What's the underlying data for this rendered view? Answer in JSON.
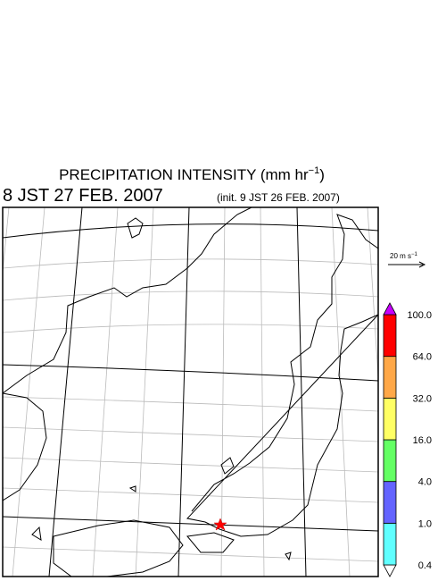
{
  "title": {
    "text": "PRECIPITATION INTENSITY (mm hr",
    "superscript": "−1",
    "close": ")"
  },
  "valid_time": "8 JST 27 FEB. 2007",
  "init_time": "(init. 9 JST 26 FEB. 2007)",
  "wind_scale": {
    "text": "20 m s",
    "superscript": "−1"
  },
  "colorbar": {
    "labels": [
      "0.4",
      "1.0",
      "4.0",
      "16.0",
      "32.0",
      "64.0",
      "100.0"
    ],
    "colors": [
      "#ffffff",
      "#60ffff",
      "#6464ff",
      "#64ff64",
      "#ffff64",
      "#ffa848",
      "#ff0000",
      "#c800ff"
    ]
  }
}
